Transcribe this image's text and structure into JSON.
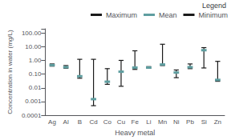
{
  "chart_data": {
    "type": "range",
    "xlabel": "Heavy metal",
    "ylabel": "Concentration in water (mg/L)",
    "legend_title": "Legend",
    "categories": [
      "Ag",
      "Al",
      "B",
      "Cd",
      "Co",
      "Cu",
      "Fe",
      "Li",
      "Mn",
      "Ni",
      "Pb",
      "Si",
      "Zn"
    ],
    "series": [
      {
        "name": "Maximum",
        "color": "#1a1a1a",
        "values": [
          0.55,
          0.42,
          1.2,
          1.2,
          0.25,
          1.0,
          5.0,
          0.35,
          15.0,
          0.2,
          0.55,
          8.5,
          0.85
        ]
      },
      {
        "name": "Mean",
        "color": "#5f9ea0",
        "values": [
          0.45,
          0.32,
          0.07,
          0.0015,
          0.028,
          0.15,
          0.3,
          0.3,
          0.5,
          0.13,
          0.32,
          5.5,
          0.038
        ]
      },
      {
        "name": "Minimum",
        "color": "#1a1a1a",
        "values": [
          0.38,
          0.27,
          0.05,
          0.0005,
          0.018,
          0.013,
          0.22,
          0.27,
          0.42,
          0.055,
          0.25,
          0.28,
          0.03
        ]
      }
    ],
    "log": "y",
    "ylim": [
      0.0001,
      200
    ],
    "yticks": [
      0.0001,
      0.001,
      0.01,
      {
        "value": 0.1,
        "label": "0.10"
      },
      {
        "value": 1,
        "label": "1.00"
      },
      {
        "value": 10,
        "label": "10.00"
      },
      {
        "value": 100,
        "label": "100.00"
      }
    ],
    "grid": false,
    "legend": "upper right"
  }
}
